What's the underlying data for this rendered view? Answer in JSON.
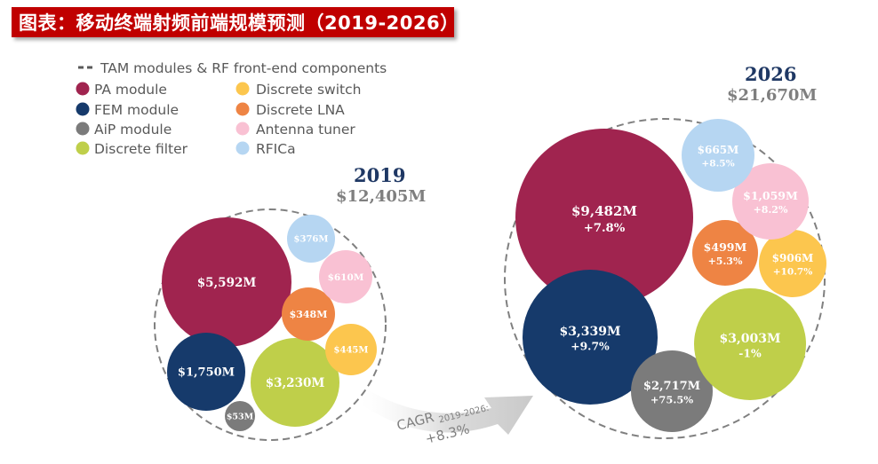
{
  "title": "图表：移动终端射频前端规模预测（2019-2026）",
  "chart_data": {
    "type": "bubble",
    "legend": [
      {
        "key": "tam",
        "label": "TAM modules & RF front-end components",
        "style": "dashed"
      },
      {
        "key": "pa",
        "label": "PA module",
        "color": "#a0244f"
      },
      {
        "key": "fem",
        "label": "FEM module",
        "color": "#163a6b"
      },
      {
        "key": "aip",
        "label": "AiP module",
        "color": "#7b7b7b"
      },
      {
        "key": "filter",
        "label": "Discrete filter",
        "color": "#bfcf4a"
      },
      {
        "key": "switch",
        "label": "Discrete switch",
        "color": "#fcc64e"
      },
      {
        "key": "lna",
        "label": "Discrete LNA",
        "color": "#ee8444"
      },
      {
        "key": "tuner",
        "label": "Antenna tuner",
        "color": "#f9c1d3"
      },
      {
        "key": "rfica",
        "label": "RFICa",
        "color": "#b6d6f2"
      }
    ],
    "groups": [
      {
        "year": "2019",
        "total_label": "$12,405M",
        "bubbles": [
          {
            "key": "pa",
            "value_label": "$5,592M"
          },
          {
            "key": "fem",
            "value_label": "$1,750M"
          },
          {
            "key": "aip",
            "value_label": "$53M"
          },
          {
            "key": "filter",
            "value_label": "$3,230M"
          },
          {
            "key": "switch",
            "value_label": "$445M"
          },
          {
            "key": "lna",
            "value_label": "$348M"
          },
          {
            "key": "tuner",
            "value_label": "$610M"
          },
          {
            "key": "rfica",
            "value_label": "$376M"
          }
        ]
      },
      {
        "year": "2026",
        "total_label": "$21,670M",
        "bubbles": [
          {
            "key": "pa",
            "value_label": "$9,482M",
            "growth": "+7.8%"
          },
          {
            "key": "fem",
            "value_label": "$3,339M",
            "growth": "+9.7%"
          },
          {
            "key": "aip",
            "value_label": "$2,717M",
            "growth": "+75.5%"
          },
          {
            "key": "filter",
            "value_label": "$3,003M",
            "growth": "-1%"
          },
          {
            "key": "switch",
            "value_label": "$906M",
            "growth": "+10.7%"
          },
          {
            "key": "lna",
            "value_label": "$499M",
            "growth": "+5.3%"
          },
          {
            "key": "tuner",
            "value_label": "$1,059M",
            "growth": "+8.2%"
          },
          {
            "key": "rfica",
            "value_label": "$665M",
            "growth": "+8.5%"
          }
        ]
      }
    ],
    "cagr": {
      "label": "CAGR",
      "period": "2019-2026:",
      "value": "+8.3%"
    }
  }
}
